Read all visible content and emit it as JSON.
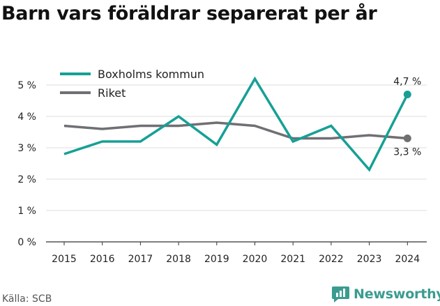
{
  "header": {
    "title": "Barn vars föräldrar separerat per år"
  },
  "footer": {
    "source": "Källa: SCB",
    "brand": "Newsworthy"
  },
  "icons": {
    "brand_icon": "newsworthy-logo-icon"
  },
  "colors": {
    "boxholm": "#16a095",
    "riket": "#6f6f74",
    "grid": "#dcdcdc",
    "axis": "#333333"
  },
  "chart_data": {
    "type": "line",
    "title": "Barn vars föräldrar separerat per år",
    "x": [
      "2015",
      "2016",
      "2017",
      "2018",
      "2019",
      "2020",
      "2021",
      "2022",
      "2023",
      "2024"
    ],
    "ylim": [
      0,
      5
    ],
    "yticks": [
      0,
      1,
      2,
      3,
      4,
      5
    ],
    "ytick_labels": [
      "0 %",
      "1 %",
      "2 %",
      "3 %",
      "4 %",
      "5 %"
    ],
    "unit": "%",
    "grid": true,
    "legend": "top-left",
    "series": [
      {
        "name": "Boxholms kommun",
        "color": "#16a095",
        "values": [
          2.8,
          3.2,
          3.2,
          4.0,
          3.1,
          5.2,
          3.2,
          3.7,
          2.3,
          4.7
        ],
        "end_label": "4,7 %"
      },
      {
        "name": "Riket",
        "color": "#6f6f74",
        "values": [
          3.7,
          3.6,
          3.7,
          3.7,
          3.8,
          3.7,
          3.3,
          3.3,
          3.4,
          3.3
        ],
        "end_label": "3,3 %"
      }
    ]
  }
}
